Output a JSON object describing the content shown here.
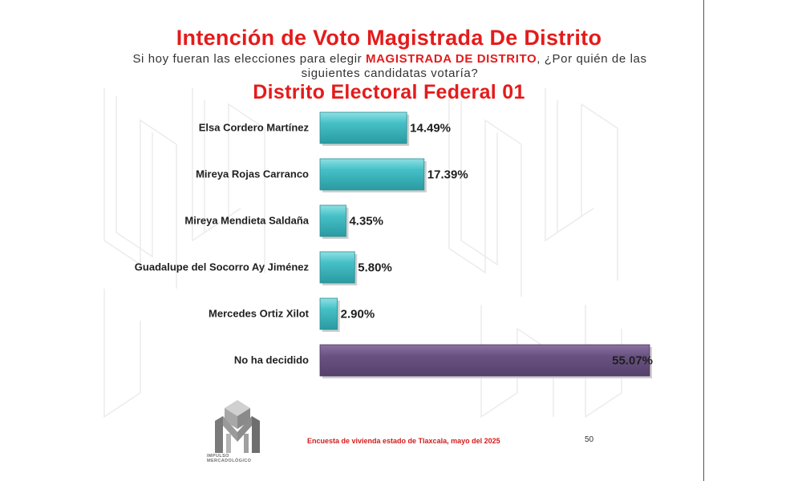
{
  "title": "Intención de Voto Magistrada De Distrito",
  "question": {
    "before": "Si hoy fueran las elecciones para elegir ",
    "highlight": "MAGISTRADA DE DISTRITO",
    "after": ", ¿Por quién de las siguientes candidatas votaría?"
  },
  "subtitle": "Distrito Electoral Federal 01",
  "footer": {
    "note": "Encuesta de vivienda estado de Tlaxcala, mayo   del 2025",
    "page_number": "50"
  },
  "logo": {
    "line1": "IMPULSO",
    "line2": "MERCADOLÓGICO"
  },
  "colors": {
    "title_red": "#e41b1b",
    "bar_teal": "#3fb6bd",
    "bar_purple": "#6a5282"
  },
  "chart_data": {
    "type": "bar",
    "orientation": "horizontal",
    "categories": [
      "Elsa Cordero Martínez",
      "Mireya Rojas Carranco",
      "Mireya Mendieta Saldaña",
      "Guadalupe del Socorro Ay Jiménez",
      "Mercedes Ortiz Xilot",
      "No ha decidido"
    ],
    "values": [
      14.49,
      17.39,
      4.35,
      5.8,
      2.9,
      55.07
    ],
    "value_labels": [
      "14.49%",
      "17.39%",
      "4.35%",
      "5.80%",
      "2.90%",
      "55.07%"
    ],
    "bar_colors": [
      "#3fb6bd",
      "#3fb6bd",
      "#3fb6bd",
      "#3fb6bd",
      "#3fb6bd",
      "#6a5282"
    ],
    "unit": "%",
    "xlim": [
      0,
      55.07
    ],
    "grid": false,
    "legend": "none"
  }
}
